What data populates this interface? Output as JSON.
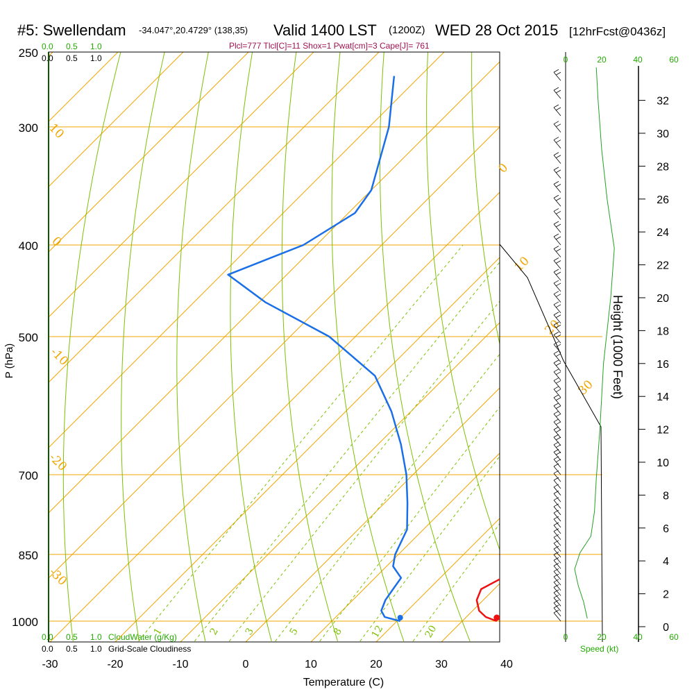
{
  "header": {
    "station": "#5: Swellendam",
    "coords": "-34.047°,20.4729° (138,35)",
    "valid": "Valid 1400 LST",
    "utc": "(1200Z)",
    "date": "WED 28 Oct 2015",
    "forecast": "[12hrFcst@0436z]",
    "indices": "Plcl=777 Tlcl[C]=11 Shox=1 Pwat[cm]=3 Cape[J]= 761"
  },
  "colors": {
    "temperature": "#ee1111",
    "dewpoint": "#1a6fe8",
    "parcel": "#7a1060",
    "isotherm": "#f0a500",
    "mixing_ratio": "#7cc000",
    "green_text": "#22aa00",
    "height_curve": "#22a022"
  },
  "chart_data": {
    "type": "skew-t",
    "xlabel": "Temperature (C)",
    "ylabel": "P (hPa)",
    "x_ticks": [
      "-30",
      "-20",
      "-10",
      "0",
      "10",
      "20",
      "30",
      "40"
    ],
    "x_tick_values": [
      -30,
      -20,
      -10,
      0,
      10,
      20,
      30,
      40
    ],
    "pressure_ticks": [
      "250",
      "300",
      "400",
      "500",
      "700",
      "850",
      "1000"
    ],
    "pressure_tick_values": [
      250,
      300,
      400,
      500,
      700,
      850,
      1000
    ],
    "isotherm_labels": [
      "10",
      "0",
      "-10",
      "-20",
      "-30",
      "0",
      "10",
      "20",
      "30"
    ],
    "mixing_ratio_labels": [
      "1",
      "2",
      "3",
      "5",
      "8",
      "12",
      "20"
    ],
    "temperature_profile": [
      {
        "p": 1000,
        "t": 35.3
      },
      {
        "p": 990,
        "t": 33.0
      },
      {
        "p": 975,
        "t": 31.0
      },
      {
        "p": 950,
        "t": 29.0
      },
      {
        "p": 925,
        "t": 28.0
      },
      {
        "p": 900,
        "t": 29.5
      },
      {
        "p": 850,
        "t": 29.5
      },
      {
        "p": 800,
        "t": 27.5
      },
      {
        "p": 750,
        "t": 26.0
      },
      {
        "p": 700,
        "t": 23.0
      },
      {
        "p": 650,
        "t": 19.0
      },
      {
        "p": 600,
        "t": 15.0
      },
      {
        "p": 550,
        "t": 10.5
      },
      {
        "p": 500,
        "t": 5.5
      },
      {
        "p": 450,
        "t": 0.0
      },
      {
        "p": 400,
        "t": -6.5
      },
      {
        "p": 350,
        "t": -14.0
      },
      {
        "p": 300,
        "t": -23.0
      },
      {
        "p": 265,
        "t": -30.0
      }
    ],
    "dewpoint_profile": [
      {
        "p": 1000,
        "t": 20.5
      },
      {
        "p": 990,
        "t": 17.5
      },
      {
        "p": 975,
        "t": 16.0
      },
      {
        "p": 950,
        "t": 15.0
      },
      {
        "p": 925,
        "t": 14.5
      },
      {
        "p": 900,
        "t": 14.0
      },
      {
        "p": 875,
        "t": 11.0
      },
      {
        "p": 850,
        "t": 9.5
      },
      {
        "p": 800,
        "t": 7.5
      },
      {
        "p": 750,
        "t": 3.5
      },
      {
        "p": 700,
        "t": -1.0
      },
      {
        "p": 650,
        "t": -6.5
      },
      {
        "p": 600,
        "t": -13.0
      },
      {
        "p": 550,
        "t": -21.0
      },
      {
        "p": 500,
        "t": -34.0
      },
      {
        "p": 460,
        "t": -49.0
      },
      {
        "p": 430,
        "t": -59.0
      },
      {
        "p": 400,
        "t": -52.0
      },
      {
        "p": 370,
        "t": -49.0
      },
      {
        "p": 350,
        "t": -50.0
      },
      {
        "p": 300,
        "t": -57.0
      },
      {
        "p": 265,
        "t": -64.0
      }
    ],
    "parcel_profile": [
      {
        "p": 625,
        "t": 17.0
      },
      {
        "p": 600,
        "t": 15.0
      },
      {
        "p": 550,
        "t": 11.0
      },
      {
        "p": 500,
        "t": 6.5
      },
      {
        "p": 450,
        "t": 1.5
      },
      {
        "p": 400,
        "t": -4.0
      },
      {
        "p": 350,
        "t": -11.0
      },
      {
        "p": 300,
        "t": -19.5
      },
      {
        "p": 265,
        "t": -26.5
      }
    ],
    "surface_temperature": 35.3,
    "surface_dewpoint": 20.5,
    "cloud_scale_top": [
      "0.0",
      "0.5",
      "1.0"
    ],
    "cloud_scale_top2": [
      "0.0",
      "0.5",
      "1.0"
    ],
    "cloud_scale_bottom": [
      "0.0",
      "0.5",
      "1.0"
    ],
    "cloud_scale_bottom2": [
      "0.0",
      "0.5",
      "1.0"
    ],
    "cloudwater_label": "CloudWater (g/Kg)",
    "cloudiness_label": "Grid-Scale Cloudiness",
    "speed_ticks": [
      "0",
      "20",
      "40",
      "60"
    ],
    "speed_tick_values": [
      0,
      20,
      40,
      60
    ],
    "speed_label": "Speed (kt)",
    "height_label": "Height (1000 Feet)",
    "height_ticks": [
      "0",
      "2",
      "4",
      "6",
      "8",
      "10",
      "12",
      "14",
      "16",
      "18",
      "20",
      "22",
      "24",
      "26",
      "28",
      "30",
      "32"
    ],
    "height_tick_values": [
      0,
      2,
      4,
      6,
      8,
      10,
      12,
      14,
      16,
      18,
      20,
      22,
      24,
      26,
      28,
      30,
      32
    ],
    "wind_speed_profile": [
      {
        "h": 0.5,
        "kt": 12
      },
      {
        "h": 1.5,
        "kt": 10
      },
      {
        "h": 2.5,
        "kt": 7
      },
      {
        "h": 3.5,
        "kt": 5
      },
      {
        "h": 4.5,
        "kt": 8
      },
      {
        "h": 5.5,
        "kt": 14
      },
      {
        "h": 7,
        "kt": 16
      },
      {
        "h": 9,
        "kt": 17
      },
      {
        "h": 12,
        "kt": 19
      },
      {
        "h": 16,
        "kt": 21
      },
      {
        "h": 20,
        "kt": 25
      },
      {
        "h": 23,
        "kt": 27
      },
      {
        "h": 26,
        "kt": 23
      },
      {
        "h": 29,
        "kt": 20
      },
      {
        "h": 32,
        "kt": 18
      },
      {
        "h": 34,
        "kt": 17
      }
    ]
  }
}
